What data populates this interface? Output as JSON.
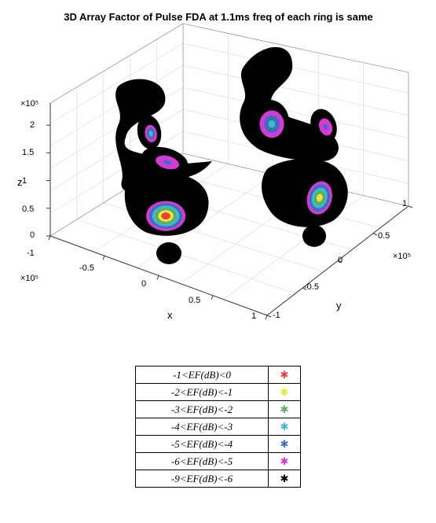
{
  "chart_data": {
    "type": "scatter",
    "title": "3D Array Factor of Pulse FDA at 1.1ms freq of each ring is same",
    "xlabel": "x",
    "ylabel": "y",
    "zlabel": "z",
    "x_ticks": [
      "-1",
      "-0.5",
      "0",
      "0.5",
      "1"
    ],
    "y_ticks": [
      "1",
      "0.5",
      "0",
      "-0.5",
      "-1"
    ],
    "z_ticks": [
      "0",
      "0.5",
      "1",
      "1.5",
      "2"
    ],
    "x_exponent": "×10⁵",
    "y_exponent": "×10⁵",
    "z_exponent": "×10⁵",
    "xlim": [
      -1,
      1
    ],
    "ylim": [
      -1,
      1
    ],
    "zlim": [
      0,
      2.4
    ],
    "grid": true,
    "legend_position": "below",
    "legend": [
      {
        "label": "-1<EF(dB)<0",
        "color": "#e8403d"
      },
      {
        "label": "-2<EF(dB)<-1",
        "color": "#e8e83a"
      },
      {
        "label": "-3<EF(dB)<-2",
        "color": "#5fae5f"
      },
      {
        "label": "-4<EF(dB)<-3",
        "color": "#3fb8c8"
      },
      {
        "label": "-5<EF(dB)<-4",
        "color": "#3a6fc0"
      },
      {
        "label": "-6<EF(dB)<-5",
        "color": "#d63ad6"
      },
      {
        "label": "-9<EF(dB)<-6",
        "color": "#000000"
      }
    ],
    "marker_glyph": "✱"
  }
}
